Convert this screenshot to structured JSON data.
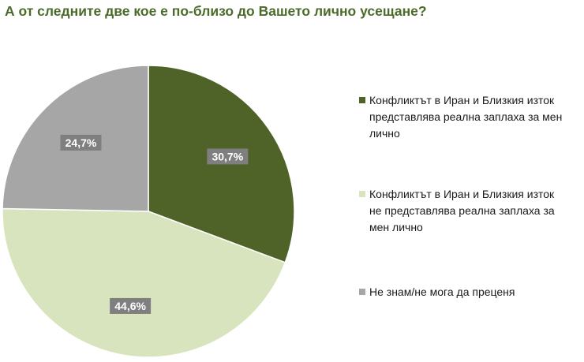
{
  "title": "А от следните две кое е по-близо до Вашето лично усещане?",
  "chart_data": {
    "type": "pie",
    "title": "А от следните две кое е по-близо до Вашето лично усещане?",
    "legend_position": "right",
    "slices": [
      {
        "label": "Конфликтът в Иран и Близкия изток представлява реална заплаха за мен лично",
        "value": 30.7,
        "value_label": "30,7%",
        "color": "#4f6228"
      },
      {
        "label": "Конфликтът в Иран и Близкия изток не представлява реална заплаха за мен лично",
        "value": 44.6,
        "value_label": "44,6%",
        "color": "#d7e4bd"
      },
      {
        "label": "Не знам/не мога да преценя",
        "value": 24.7,
        "value_label": "24,7%",
        "color": "#a6a6a6"
      }
    ]
  }
}
